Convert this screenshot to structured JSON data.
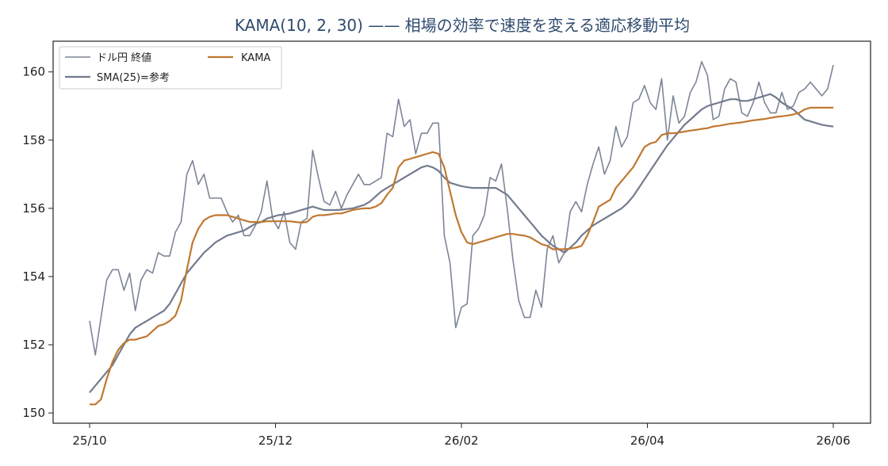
{
  "chart_data": {
    "type": "line",
    "title": "KAMA(10, 2, 30) —— 相場の効率で速度を変える適応移動平均",
    "xlabel": "",
    "ylabel": "",
    "x_ticks": [
      "25/10",
      "25/12",
      "26/02",
      "26/04",
      "26/06"
    ],
    "y_ticks": [
      150,
      152,
      154,
      156,
      158,
      160
    ],
    "ylim": [
      149.7,
      160.9
    ],
    "grid": false,
    "legend_position": "top-left",
    "n_points": 131,
    "series": [
      {
        "name": "ドル円 終値",
        "color": "#7d8597",
        "values": [
          152.7,
          151.7,
          152.8,
          153.9,
          154.2,
          154.2,
          153.6,
          154.1,
          153.0,
          153.9,
          154.2,
          154.1,
          154.7,
          154.6,
          154.6,
          155.3,
          155.6,
          157.0,
          157.4,
          156.7,
          157.0,
          156.3,
          156.3,
          156.3,
          155.9,
          155.6,
          155.8,
          155.2,
          155.2,
          155.5,
          155.9,
          156.8,
          155.7,
          155.4,
          155.9,
          155.0,
          154.8,
          155.6,
          155.7,
          157.7,
          156.9,
          156.2,
          156.1,
          156.5,
          156.0,
          156.4,
          156.7,
          157.0,
          156.7,
          156.7,
          156.8,
          156.9,
          158.2,
          158.1,
          159.2,
          158.4,
          158.6,
          157.6,
          158.2,
          158.2,
          158.5,
          158.5,
          155.2,
          154.4,
          152.5,
          153.1,
          153.2,
          155.2,
          155.4,
          155.8,
          156.9,
          156.8,
          157.3,
          156.0,
          154.5,
          153.3,
          152.8,
          152.8,
          153.6,
          153.1,
          154.8,
          155.2,
          154.4,
          154.7,
          155.9,
          156.2,
          155.9,
          156.7,
          157.3,
          157.8,
          157.0,
          157.4,
          158.4,
          157.8,
          158.1,
          159.1,
          159.2,
          159.6,
          159.1,
          158.9,
          159.8,
          158.0,
          159.3,
          158.5,
          158.7,
          159.4,
          159.7,
          160.3,
          159.9,
          158.6,
          158.7,
          159.5,
          159.8,
          159.7,
          158.8,
          158.7,
          159.1,
          159.7,
          159.1,
          158.8,
          158.8,
          159.4,
          158.9,
          159.0,
          159.4,
          159.5,
          159.7,
          159.5,
          159.3,
          159.5,
          160.2
        ]
      },
      {
        "name": "SMA(25)=参考",
        "color": "#737b8e",
        "values": [
          150.6,
          150.8,
          151.0,
          151.2,
          151.4,
          151.7,
          152.0,
          152.3,
          152.5,
          152.6,
          152.7,
          152.8,
          152.9,
          153.0,
          153.2,
          153.5,
          153.8,
          154.1,
          154.3,
          154.5,
          154.7,
          154.85,
          155.0,
          155.1,
          155.2,
          155.25,
          155.3,
          155.35,
          155.45,
          155.55,
          155.6,
          155.7,
          155.75,
          155.8,
          155.82,
          155.85,
          155.9,
          155.95,
          156.0,
          156.05,
          156.0,
          155.95,
          155.95,
          155.95,
          155.96,
          155.98,
          156.0,
          156.05,
          156.1,
          156.2,
          156.35,
          156.5,
          156.6,
          156.7,
          156.8,
          156.9,
          157.0,
          157.1,
          157.2,
          157.25,
          157.2,
          157.1,
          156.9,
          156.75,
          156.7,
          156.65,
          156.62,
          156.6,
          156.6,
          156.6,
          156.6,
          156.6,
          156.5,
          156.4,
          156.2,
          156.0,
          155.8,
          155.6,
          155.4,
          155.2,
          155.05,
          154.9,
          154.8,
          154.7,
          154.85,
          155.0,
          155.2,
          155.35,
          155.5,
          155.6,
          155.7,
          155.8,
          155.9,
          156.0,
          156.15,
          156.35,
          156.6,
          156.85,
          157.1,
          157.35,
          157.6,
          157.85,
          158.05,
          158.25,
          158.45,
          158.6,
          158.75,
          158.9,
          159.0,
          159.05,
          159.1,
          159.15,
          159.2,
          159.2,
          159.15,
          159.15,
          159.2,
          159.25,
          159.3,
          159.35,
          159.25,
          159.1,
          159.0,
          158.9,
          158.75,
          158.6,
          158.55,
          158.5,
          158.45,
          158.42,
          158.4
        ]
      },
      {
        "name": "KAMA",
        "color": "#c07830",
        "values": [
          150.25,
          150.25,
          150.4,
          151.0,
          151.5,
          151.85,
          152.05,
          152.15,
          152.15,
          152.2,
          152.25,
          152.4,
          152.55,
          152.6,
          152.7,
          152.85,
          153.3,
          154.2,
          155.0,
          155.4,
          155.65,
          155.75,
          155.8,
          155.8,
          155.8,
          155.75,
          155.7,
          155.65,
          155.6,
          155.6,
          155.6,
          155.62,
          155.62,
          155.62,
          155.62,
          155.62,
          155.6,
          155.58,
          155.6,
          155.75,
          155.8,
          155.8,
          155.82,
          155.85,
          155.85,
          155.9,
          155.95,
          155.98,
          156.0,
          156.0,
          156.05,
          156.15,
          156.4,
          156.6,
          157.2,
          157.4,
          157.45,
          157.5,
          157.55,
          157.6,
          157.65,
          157.6,
          157.2,
          156.5,
          155.8,
          155.3,
          155.0,
          154.95,
          155.0,
          155.05,
          155.1,
          155.15,
          155.2,
          155.25,
          155.25,
          155.22,
          155.2,
          155.15,
          155.05,
          154.95,
          154.9,
          154.8,
          154.8,
          154.8,
          154.82,
          154.85,
          154.9,
          155.2,
          155.6,
          156.05,
          156.15,
          156.25,
          156.6,
          156.8,
          157.0,
          157.2,
          157.5,
          157.8,
          157.9,
          157.95,
          158.15,
          158.2,
          158.2,
          158.22,
          158.25,
          158.28,
          158.3,
          158.33,
          158.35,
          158.4,
          158.42,
          158.45,
          158.48,
          158.5,
          158.52,
          158.55,
          158.58,
          158.6,
          158.62,
          158.65,
          158.68,
          158.7,
          158.72,
          158.75,
          158.8,
          158.9,
          158.95,
          158.95,
          158.95,
          158.95,
          158.95
        ]
      }
    ]
  }
}
